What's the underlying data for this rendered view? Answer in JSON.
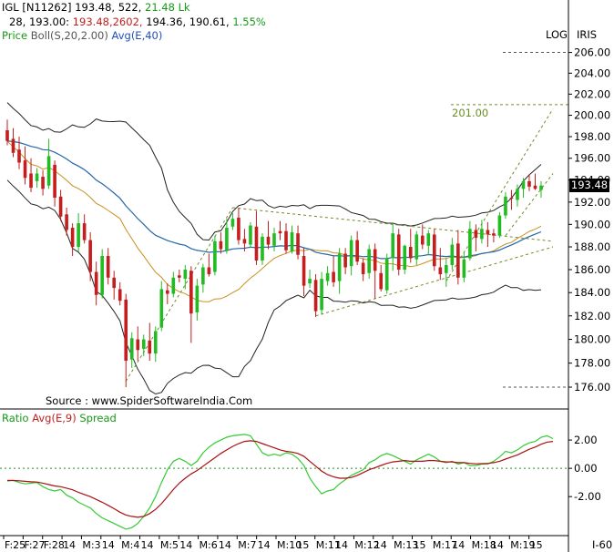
{
  "header": {
    "line1": {
      "symbol": "IGL [N11262]",
      "close_vol": "193.48, 522,",
      "turnover": "21.48  Lk"
    },
    "line2": {
      "p1": "28,  193.00:",
      "p2": "193.48,2602,",
      "p3": "194.36,  190.61,",
      "p4": "1.55%"
    },
    "line3": {
      "price": "Price",
      "boll": "Boll(S,20,2.00)",
      "avg": "Avg(E,40)"
    }
  },
  "top_right": {
    "log": "LOG",
    "iris": "IRIS"
  },
  "last_price_label": "193.48",
  "source": "Source : www.SpiderSoftwareIndia.Com",
  "target_label": "201.00",
  "lower_legend": {
    "ratio": "Ratio",
    "avg": "Avg(E,9)",
    "spread": "Spread"
  },
  "bottom_right": "I-60",
  "colors": {
    "up": "#22bb22",
    "down": "#c41e1e",
    "boll": "#222222",
    "avg40": "#2266aa",
    "midband": "#c8901e",
    "trend": "#6b8e23",
    "ratio": "#33cc33",
    "ratio_avg": "#aa1111"
  },
  "chart_data": [
    {
      "type": "candlestick",
      "title": "IGL [N11262]",
      "y_axis": {
        "ticks": [
          176,
          178,
          180,
          182,
          184,
          186,
          188,
          190,
          192,
          194,
          196,
          198,
          200,
          202,
          204,
          206
        ],
        "range": [
          175.4,
          207.2
        ],
        "scale": "log"
      },
      "x_axis": {
        "tick_labels": [
          "F:25",
          "F:27",
          "F:28",
          "14",
          "M:3",
          "14",
          "M:4",
          "14",
          "M:5",
          "14",
          "M:6",
          "14",
          "M:7",
          "14",
          "M:10",
          "15",
          "M:11",
          "14",
          "M:12",
          "14",
          "M:13",
          "15",
          "M:17",
          "14",
          "M:18",
          "14",
          "M:19",
          "15"
        ]
      },
      "ohlc": [
        [
          198.6,
          199.6,
          197.2,
          197.6
        ],
        [
          197.8,
          198.8,
          196.1,
          196.5
        ],
        [
          196.8,
          198.0,
          195.0,
          195.6
        ],
        [
          195.8,
          197.1,
          193.6,
          194.2
        ],
        [
          194.6,
          196.0,
          192.9,
          193.3
        ],
        [
          193.9,
          195.1,
          193.3,
          194.6
        ],
        [
          194.3,
          194.9,
          192.6,
          193.2
        ],
        [
          193.5,
          197.8,
          193.2,
          196.2
        ],
        [
          195.4,
          195.8,
          191.6,
          192.4
        ],
        [
          192.5,
          193.1,
          190.3,
          190.7
        ],
        [
          190.9,
          191.5,
          189.0,
          189.5
        ],
        [
          189.7,
          190.1,
          187.2,
          188.0
        ],
        [
          188.0,
          191.0,
          187.6,
          190.1
        ],
        [
          190.1,
          190.9,
          188.3,
          188.6
        ],
        [
          188.6,
          189.3,
          185.0,
          185.8
        ],
        [
          185.8,
          186.7,
          182.9,
          183.8
        ],
        [
          183.8,
          187.8,
          183.5,
          187.2
        ],
        [
          187.2,
          187.9,
          184.7,
          185.3
        ],
        [
          185.3,
          185.9,
          183.4,
          184.4
        ],
        [
          184.3,
          184.9,
          182.9,
          183.3
        ],
        [
          183.4,
          183.9,
          176.0,
          178.2
        ],
        [
          178.3,
          180.6,
          177.6,
          180.1
        ],
        [
          180.0,
          181.1,
          178.2,
          179.1
        ],
        [
          179.2,
          180.4,
          178.6,
          180.0
        ],
        [
          179.9,
          181.4,
          178.2,
          178.8
        ],
        [
          178.8,
          181.1,
          178.1,
          180.7
        ],
        [
          181.0,
          185.0,
          180.7,
          184.3
        ],
        [
          184.2,
          184.8,
          183.0,
          183.9
        ],
        [
          183.9,
          185.8,
          183.6,
          185.3
        ],
        [
          185.5,
          186.0,
          184.9,
          185.3
        ],
        [
          185.2,
          186.4,
          184.3,
          186.0
        ],
        [
          185.9,
          186.3,
          179.7,
          182.2
        ],
        [
          182.3,
          185.2,
          181.6,
          184.6
        ],
        [
          184.7,
          186.5,
          184.0,
          186.2
        ],
        [
          186.2,
          187.4,
          185.4,
          185.6
        ],
        [
          185.8,
          189.0,
          185.5,
          188.5
        ],
        [
          188.5,
          189.3,
          187.4,
          187.8
        ],
        [
          187.7,
          190.5,
          187.4,
          189.7
        ],
        [
          189.8,
          191.0,
          189.5,
          190.5
        ],
        [
          190.6,
          191.5,
          188.2,
          188.6
        ],
        [
          188.7,
          189.6,
          187.6,
          188.3
        ],
        [
          188.2,
          190.2,
          187.9,
          189.9
        ],
        [
          189.8,
          191.2,
          186.4,
          186.8
        ],
        [
          186.8,
          189.2,
          186.4,
          188.9
        ],
        [
          188.9,
          190.3,
          187.8,
          188.2
        ],
        [
          188.1,
          189.7,
          187.6,
          189.2
        ],
        [
          189.4,
          190.3,
          188.6,
          189.2
        ],
        [
          189.4,
          190.1,
          187.4,
          187.7
        ],
        [
          187.6,
          189.9,
          187.4,
          189.3
        ],
        [
          189.2,
          189.9,
          186.9,
          187.3
        ],
        [
          187.2,
          187.9,
          183.7,
          184.6
        ],
        [
          184.8,
          186.0,
          184.4,
          185.2
        ],
        [
          185.1,
          185.6,
          181.9,
          182.4
        ],
        [
          182.5,
          185.8,
          182.1,
          185.2
        ],
        [
          185.0,
          186.3,
          184.6,
          185.7
        ],
        [
          185.8,
          187.2,
          184.5,
          184.9
        ],
        [
          185.0,
          187.9,
          183.9,
          187.4
        ],
        [
          187.4,
          187.9,
          185.6,
          186.2
        ],
        [
          186.3,
          189.0,
          185.5,
          188.6
        ],
        [
          188.6,
          189.4,
          186.4,
          186.7
        ],
        [
          186.6,
          187.0,
          185.0,
          185.6
        ],
        [
          185.7,
          188.2,
          185.2,
          187.8
        ],
        [
          187.8,
          188.3,
          183.5,
          185.9
        ],
        [
          185.7,
          186.4,
          184.1,
          184.3
        ],
        [
          184.2,
          187.4,
          183.9,
          187.0
        ],
        [
          187.0,
          190.1,
          185.9,
          189.2
        ],
        [
          189.1,
          189.6,
          185.5,
          186.0
        ],
        [
          186.0,
          188.2,
          185.6,
          188.1
        ],
        [
          188.0,
          189.6,
          186.6,
          187.0
        ],
        [
          186.9,
          189.4,
          186.4,
          189.1
        ],
        [
          189.0,
          190.0,
          187.8,
          188.2
        ],
        [
          188.1,
          189.5,
          187.3,
          189.2
        ],
        [
          189.1,
          189.6,
          185.9,
          186.3
        ],
        [
          186.2,
          187.9,
          185.1,
          185.6
        ],
        [
          185.7,
          187.0,
          184.5,
          186.4
        ],
        [
          186.4,
          188.8,
          186.0,
          188.2
        ],
        [
          188.3,
          189.5,
          184.7,
          185.3
        ],
        [
          185.3,
          187.5,
          184.9,
          186.9
        ],
        [
          187.0,
          190.3,
          186.8,
          189.6
        ],
        [
          189.5,
          190.0,
          187.6,
          188.8
        ],
        [
          188.7,
          190.4,
          188.3,
          189.6
        ],
        [
          189.5,
          190.2,
          188.0,
          189.1
        ],
        [
          189.2,
          189.6,
          188.4,
          189.0
        ],
        [
          189.0,
          191.1,
          188.8,
          190.8
        ],
        [
          190.8,
          192.9,
          190.5,
          192.5
        ],
        [
          192.4,
          193.1,
          191.3,
          192.3
        ],
        [
          192.2,
          193.6,
          191.6,
          193.2
        ],
        [
          193.2,
          194.2,
          192.4,
          193.9
        ],
        [
          193.9,
          194.5,
          193.0,
          193.4
        ],
        [
          193.5,
          194.6,
          193.1,
          193.2
        ],
        [
          193.1,
          193.9,
          192.4,
          193.5
        ]
      ]
    },
    {
      "type": "line",
      "title": "Ratio",
      "y_axis": {
        "ticks": [
          2.0,
          0.0,
          -2.0
        ],
        "range": [
          -4.5,
          3.1
        ],
        "zero_line": true
      },
      "series": [
        {
          "name": "Spread",
          "values": [
            -0.9,
            -0.85,
            -1.0,
            -1.1,
            -1.05,
            -1.0,
            -1.3,
            -1.5,
            -1.6,
            -1.5,
            -1.9,
            -2.1,
            -2.4,
            -2.6,
            -2.8,
            -3.2,
            -3.5,
            -3.7,
            -3.9,
            -4.1,
            -4.3,
            -4.2,
            -3.9,
            -3.4,
            -2.8,
            -2.0,
            -1.0,
            -0.1,
            0.5,
            0.7,
            0.5,
            0.2,
            0.5,
            1.1,
            1.5,
            1.8,
            2.0,
            2.2,
            2.3,
            2.35,
            2.4,
            2.3,
            1.7,
            1.1,
            0.9,
            1.0,
            0.9,
            1.1,
            1.0,
            0.7,
            0.2,
            -0.7,
            -1.3,
            -1.8,
            -1.6,
            -1.5,
            -1.1,
            -0.8,
            -0.5,
            -0.3,
            -0.1,
            0.4,
            0.6,
            0.9,
            1.05,
            0.9,
            0.7,
            0.5,
            0.3,
            0.6,
            0.8,
            1.0,
            0.8,
            0.5,
            0.4,
            0.5,
            0.3,
            0.4,
            0.2,
            0.2,
            0.3,
            0.3,
            0.5,
            0.8,
            1.2,
            1.1,
            1.3,
            1.6,
            1.8,
            1.9,
            2.2,
            2.3,
            2.1
          ]
        },
        {
          "name": "Avg(E,9)",
          "values": [
            -0.85,
            -0.86,
            -0.88,
            -0.92,
            -0.95,
            -0.97,
            -1.05,
            -1.15,
            -1.25,
            -1.3,
            -1.4,
            -1.52,
            -1.7,
            -1.85,
            -2.0,
            -2.2,
            -2.4,
            -2.62,
            -2.85,
            -3.1,
            -3.3,
            -3.4,
            -3.46,
            -3.4,
            -3.2,
            -2.9,
            -2.5,
            -2.0,
            -1.5,
            -1.05,
            -0.7,
            -0.4,
            -0.15,
            0.15,
            0.45,
            0.75,
            1.05,
            1.3,
            1.55,
            1.75,
            1.9,
            1.95,
            1.9,
            1.75,
            1.6,
            1.45,
            1.3,
            1.2,
            1.15,
            1.05,
            0.85,
            0.5,
            0.15,
            -0.2,
            -0.45,
            -0.6,
            -0.7,
            -0.7,
            -0.65,
            -0.5,
            -0.3,
            -0.1,
            0.05,
            0.2,
            0.35,
            0.45,
            0.5,
            0.55,
            0.5,
            0.5,
            0.5,
            0.55,
            0.55,
            0.5,
            0.45,
            0.45,
            0.4,
            0.4,
            0.35,
            0.32,
            0.33,
            0.35,
            0.4,
            0.5,
            0.65,
            0.8,
            0.95,
            1.15,
            1.35,
            1.5,
            1.7,
            1.85,
            1.9
          ]
        }
      ]
    }
  ]
}
